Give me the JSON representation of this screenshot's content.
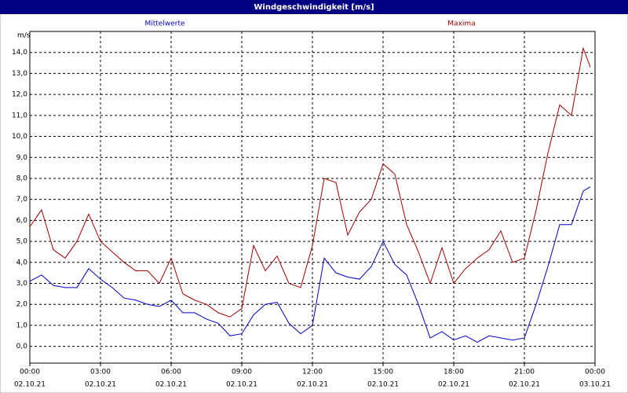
{
  "chart_data": {
    "type": "line",
    "title": "Windgeschwindigkeit [m/s]",
    "y_unit": "m/s",
    "x": [
      0,
      0.5,
      1,
      1.5,
      2,
      2.5,
      3,
      3.5,
      4,
      4.5,
      5,
      5.5,
      6,
      6.5,
      7,
      7.5,
      8,
      8.5,
      9,
      9.5,
      10,
      10.5,
      11,
      11.5,
      12,
      12.5,
      13,
      13.5,
      14,
      14.5,
      15,
      15.5,
      16,
      16.5,
      17,
      17.5,
      18,
      18.5,
      19,
      19.5,
      20,
      20.5,
      21,
      21.5,
      22,
      22.5,
      23,
      23.5,
      23.8
    ],
    "series": [
      {
        "name": "Mittelwerte",
        "color": "#0000c8",
        "values": [
          3.1,
          3.4,
          2.9,
          2.8,
          2.8,
          3.7,
          3.2,
          2.8,
          2.3,
          2.2,
          2.0,
          1.9,
          2.2,
          1.6,
          1.6,
          1.3,
          1.1,
          0.5,
          0.6,
          1.5,
          2.0,
          2.1,
          1.1,
          0.6,
          1.0,
          4.2,
          3.5,
          3.3,
          3.2,
          3.8,
          5.0,
          3.9,
          3.4,
          2.0,
          0.4,
          0.7,
          0.3,
          0.5,
          0.2,
          0.5,
          0.4,
          0.3,
          0.4,
          2.0,
          3.8,
          5.8,
          5.8,
          7.4,
          7.6
        ]
      },
      {
        "name": "Maxima",
        "color": "#a00000",
        "values": [
          5.7,
          6.5,
          4.6,
          4.2,
          5.0,
          6.3,
          5.0,
          4.5,
          4.0,
          3.6,
          3.6,
          3.0,
          4.2,
          2.5,
          2.2,
          2.0,
          1.6,
          1.4,
          1.8,
          4.8,
          3.6,
          4.3,
          3.0,
          2.8,
          4.8,
          8.0,
          7.8,
          5.3,
          6.4,
          7.0,
          8.7,
          8.2,
          5.8,
          4.5,
          3.0,
          4.7,
          3.0,
          3.7,
          4.2,
          4.6,
          5.5,
          4.0,
          4.2,
          6.5,
          9.2,
          11.5,
          11.0,
          14.2,
          13.3
        ]
      }
    ],
    "xlim": [
      0,
      24
    ],
    "xticks": [
      {
        "value": 0,
        "label": "00:00",
        "date": "02.10.21"
      },
      {
        "value": 3,
        "label": "03:00",
        "date": "02.10.21"
      },
      {
        "value": 6,
        "label": "06:00",
        "date": "02.10.21"
      },
      {
        "value": 9,
        "label": "09:00",
        "date": "02.10.21"
      },
      {
        "value": 12,
        "label": "12:00",
        "date": "02.10.21"
      },
      {
        "value": 15,
        "label": "15:00",
        "date": "02.10.21"
      },
      {
        "value": 18,
        "label": "18:00",
        "date": "02.10.21"
      },
      {
        "value": 21,
        "label": "21:00",
        "date": "02.10.21"
      },
      {
        "value": 24,
        "label": "00:00",
        "date": "03.10.21"
      }
    ],
    "ylim": [
      -0.8,
      15
    ],
    "yticks": [
      {
        "value": 0,
        "label": "0,0"
      },
      {
        "value": 1,
        "label": "1,0"
      },
      {
        "value": 2,
        "label": "2,0"
      },
      {
        "value": 3,
        "label": "3,0"
      },
      {
        "value": 4,
        "label": "4,0"
      },
      {
        "value": 5,
        "label": "5,0"
      },
      {
        "value": 6,
        "label": "6,0"
      },
      {
        "value": 7,
        "label": "7,0"
      },
      {
        "value": 8,
        "label": "8,0"
      },
      {
        "value": 9,
        "label": "9,0"
      },
      {
        "value": 10,
        "label": "10,0"
      },
      {
        "value": 11,
        "label": "11,0"
      },
      {
        "value": 12,
        "label": "12,0"
      },
      {
        "value": 13,
        "label": "13,0"
      },
      {
        "value": 14,
        "label": "14,0"
      }
    ],
    "grid": true
  }
}
